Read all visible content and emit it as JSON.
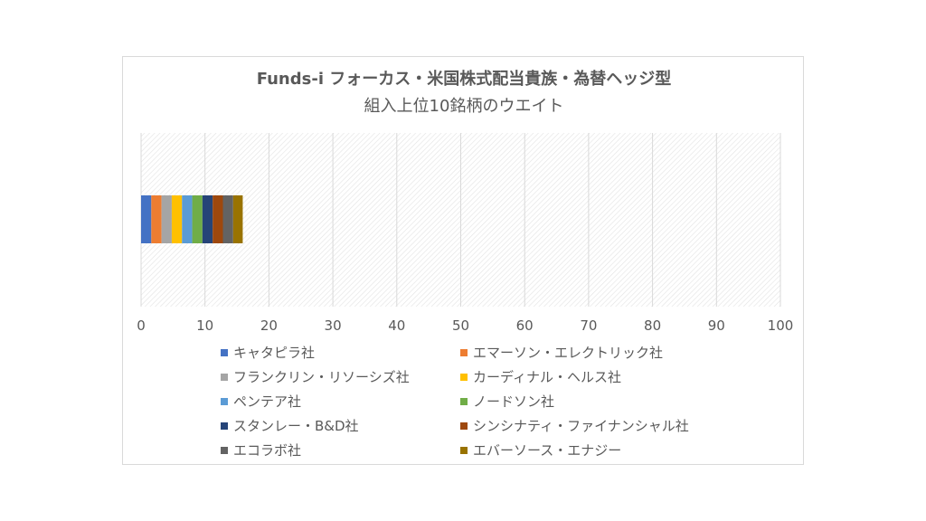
{
  "chart_data": {
    "type": "bar",
    "orientation": "horizontal",
    "stacked": true,
    "title": "Funds-i フォーカス・米国株式配当貴族・為替ヘッジ型",
    "subtitle": "組入上位10銘柄のウエイト",
    "xlim": [
      0,
      100
    ],
    "x_ticks": [
      0,
      10,
      20,
      30,
      40,
      50,
      60,
      70,
      80,
      90,
      100
    ],
    "grid": true,
    "legend_position": "bottom",
    "series": [
      {
        "name": "キャタピラ社",
        "values": [
          1.6
        ],
        "color": "#4472c4"
      },
      {
        "name": "エマーソン・エレクトリック社",
        "values": [
          1.6
        ],
        "color": "#ed7d31"
      },
      {
        "name": "フランクリン・リソーシズ社",
        "values": [
          1.6
        ],
        "color": "#a5a5a5"
      },
      {
        "name": "カーディナル・ヘルス社",
        "values": [
          1.6
        ],
        "color": "#ffc000"
      },
      {
        "name": "ペンテア社",
        "values": [
          1.6
        ],
        "color": "#5b9bd5"
      },
      {
        "name": "ノードソン社",
        "values": [
          1.6
        ],
        "color": "#70ad47"
      },
      {
        "name": "スタンレー・B&D社",
        "values": [
          1.6
        ],
        "color": "#264478"
      },
      {
        "name": "シンシナティ・ファイナンシャル社",
        "values": [
          1.6
        ],
        "color": "#9e480e"
      },
      {
        "name": "エコラボ社",
        "values": [
          1.6
        ],
        "color": "#636363"
      },
      {
        "name": "エバーソース・エナジー",
        "values": [
          1.5
        ],
        "color": "#997300"
      }
    ]
  }
}
